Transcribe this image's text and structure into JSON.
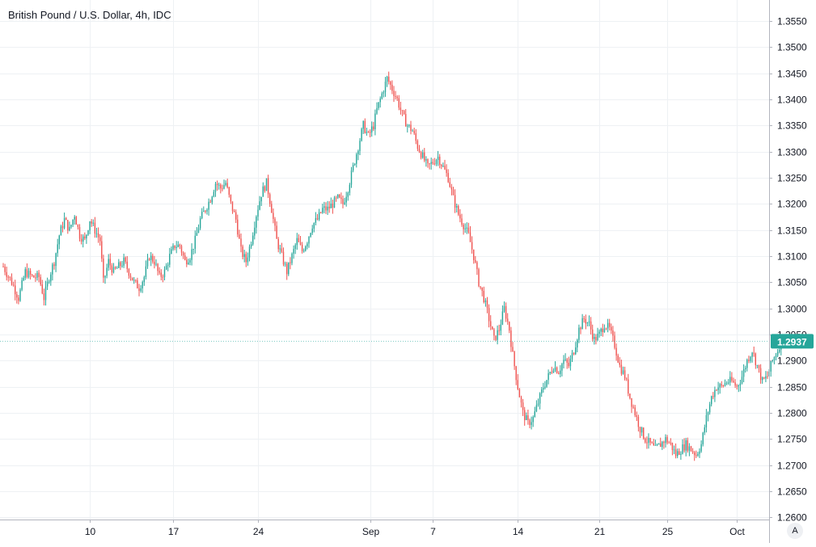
{
  "chart": {
    "title": "British Pound / U.S. Dollar, 4h, IDC",
    "last_price_label": "1.2937",
    "scale_button_label": "A"
  },
  "colors": {
    "up": "#26a69a",
    "down": "#ef5350",
    "grid": "#eef1f4",
    "axis_text": "#131722",
    "price_tag_bg": "#26a69a"
  },
  "chart_data": {
    "type": "candlestick",
    "title": "British Pound / U.S. Dollar, 4h, IDC",
    "y_ticks": [
      "1.2600",
      "1.2650",
      "1.2700",
      "1.2750",
      "1.2800",
      "1.2850",
      "1.2900",
      "1.2950",
      "1.3000",
      "1.3050",
      "1.3100",
      "1.3150",
      "1.3200",
      "1.3250",
      "1.3300",
      "1.3350",
      "1.3400",
      "1.3450",
      "1.3500",
      "1.3550"
    ],
    "ylim": [
      1.2596,
      1.359
    ],
    "x_tick_labels": [
      "10",
      "17",
      "24",
      "Sep",
      "7",
      "14",
      "21",
      "25",
      "Oct"
    ],
    "grid": true,
    "last_price": 1.2937,
    "price_path": [
      [
        0,
        1.308
      ],
      [
        5,
        1.305
      ],
      [
        9,
        1.302
      ],
      [
        13,
        1.307
      ],
      [
        17,
        1.306
      ],
      [
        21,
        1.306
      ],
      [
        24,
        1.302
      ],
      [
        27,
        1.306
      ],
      [
        30,
        1.309
      ],
      [
        33,
        1.314
      ],
      [
        36,
        1.317
      ],
      [
        39,
        1.315
      ],
      [
        42,
        1.318
      ],
      [
        45,
        1.314
      ],
      [
        48,
        1.313
      ],
      [
        51,
        1.317
      ],
      [
        54,
        1.315
      ],
      [
        57,
        1.313
      ],
      [
        59,
        1.305
      ],
      [
        62,
        1.309
      ],
      [
        65,
        1.307
      ],
      [
        68,
        1.308
      ],
      [
        71,
        1.309
      ],
      [
        74,
        1.307
      ],
      [
        77,
        1.305
      ],
      [
        80,
        1.304
      ],
      [
        83,
        1.306
      ],
      [
        86,
        1.31
      ],
      [
        89,
        1.309
      ],
      [
        92,
        1.306
      ],
      [
        95,
        1.307
      ],
      [
        98,
        1.31
      ],
      [
        101,
        1.312
      ],
      [
        104,
        1.312
      ],
      [
        107,
        1.309
      ],
      [
        110,
        1.31
      ],
      [
        113,
        1.313
      ],
      [
        116,
        1.317
      ],
      [
        119,
        1.319
      ],
      [
        122,
        1.321
      ],
      [
        125,
        1.324
      ],
      [
        128,
        1.323
      ],
      [
        131,
        1.324
      ],
      [
        134,
        1.32
      ],
      [
        137,
        1.317
      ],
      [
        140,
        1.311
      ],
      [
        143,
        1.309
      ],
      [
        146,
        1.313
      ],
      [
        149,
        1.318
      ],
      [
        152,
        1.322
      ],
      [
        155,
        1.324
      ],
      [
        158,
        1.319
      ],
      [
        161,
        1.313
      ],
      [
        164,
        1.31
      ],
      [
        167,
        1.307
      ],
      [
        170,
        1.31
      ],
      [
        173,
        1.313
      ],
      [
        176,
        1.311
      ],
      [
        179,
        1.313
      ],
      [
        182,
        1.316
      ],
      [
        185,
        1.317
      ],
      [
        188,
        1.319
      ],
      [
        191,
        1.319
      ],
      [
        194,
        1.32
      ],
      [
        197,
        1.321
      ],
      [
        200,
        1.32
      ],
      [
        203,
        1.323
      ],
      [
        206,
        1.327
      ],
      [
        209,
        1.331
      ],
      [
        212,
        1.335
      ],
      [
        215,
        1.333
      ],
      [
        218,
        1.335
      ],
      [
        220,
        1.338
      ],
      [
        223,
        1.341
      ],
      [
        226,
        1.344
      ],
      [
        229,
        1.342
      ],
      [
        232,
        1.34
      ],
      [
        235,
        1.337
      ],
      [
        238,
        1.335
      ],
      [
        241,
        1.334
      ],
      [
        244,
        1.331
      ],
      [
        247,
        1.329
      ],
      [
        250,
        1.327
      ],
      [
        253,
        1.328
      ],
      [
        256,
        1.329
      ],
      [
        259,
        1.327
      ],
      [
        262,
        1.325
      ],
      [
        265,
        1.321
      ],
      [
        268,
        1.318
      ],
      [
        271,
        1.316
      ],
      [
        274,
        1.314
      ],
      [
        277,
        1.31
      ],
      [
        280,
        1.305
      ],
      [
        283,
        1.302
      ],
      [
        286,
        1.298
      ],
      [
        289,
        1.294
      ],
      [
        292,
        1.296
      ],
      [
        295,
        1.3
      ],
      [
        298,
        1.296
      ],
      [
        300,
        1.291
      ],
      [
        303,
        1.285
      ],
      [
        306,
        1.28
      ],
      [
        309,
        1.278
      ],
      [
        312,
        1.279
      ],
      [
        315,
        1.282
      ],
      [
        318,
        1.285
      ],
      [
        321,
        1.287
      ],
      [
        324,
        1.289
      ],
      [
        327,
        1.288
      ],
      [
        330,
        1.29
      ],
      [
        333,
        1.289
      ],
      [
        336,
        1.292
      ],
      [
        339,
        1.296
      ],
      [
        342,
        1.298
      ],
      [
        345,
        1.297
      ],
      [
        348,
        1.294
      ],
      [
        351,
        1.295
      ],
      [
        354,
        1.297
      ],
      [
        357,
        1.296
      ],
      [
        360,
        1.293
      ],
      [
        363,
        1.289
      ],
      [
        366,
        1.287
      ],
      [
        369,
        1.283
      ],
      [
        372,
        1.28
      ],
      [
        375,
        1.277
      ],
      [
        378,
        1.275
      ],
      [
        381,
        1.274
      ],
      [
        384,
        1.273
      ],
      [
        387,
        1.274
      ],
      [
        390,
        1.275
      ],
      [
        393,
        1.274
      ],
      [
        396,
        1.272
      ],
      [
        399,
        1.273
      ],
      [
        402,
        1.274
      ],
      [
        405,
        1.273
      ],
      [
        408,
        1.272
      ],
      [
        411,
        1.274
      ],
      [
        414,
        1.279
      ],
      [
        417,
        1.283
      ],
      [
        420,
        1.285
      ],
      [
        423,
        1.285
      ],
      [
        426,
        1.286
      ],
      [
        429,
        1.286
      ],
      [
        432,
        1.285
      ],
      [
        435,
        1.287
      ],
      [
        438,
        1.29
      ],
      [
        441,
        1.292
      ],
      [
        444,
        1.289
      ],
      [
        447,
        1.286
      ],
      [
        450,
        1.287
      ],
      [
        453,
        1.29
      ],
      [
        456,
        1.292
      ],
      [
        458,
        1.294
      ]
    ],
    "candles_per_unit": 1,
    "x_tick_positions": [
      51,
      100,
      150,
      216,
      253,
      303,
      351,
      391,
      432
    ],
    "x_domain": [
      0,
      460
    ]
  }
}
